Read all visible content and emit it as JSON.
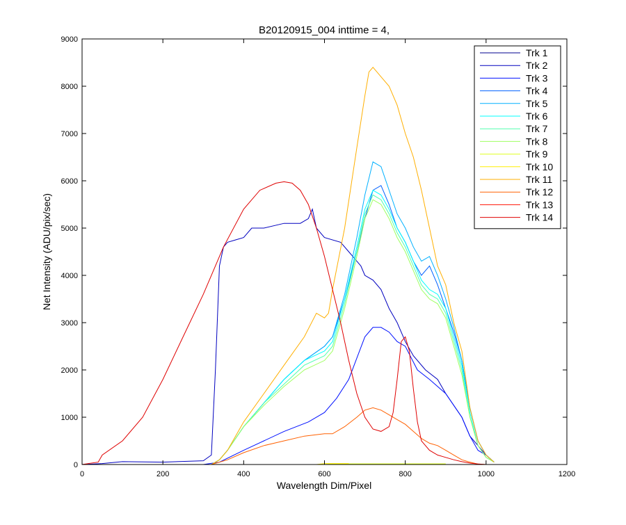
{
  "figure": {
    "background": "#ffffff"
  },
  "chart_data": {
    "type": "line",
    "title": "B20120915_004 inttime = 4,",
    "xlabel": "Wavelength Dim/Pixel",
    "ylabel": "Net Intensity (ADU/pix/sec)",
    "xlim": [
      0,
      1200
    ],
    "ylim": [
      0,
      9000
    ],
    "xticks": [
      0,
      200,
      400,
      600,
      800,
      1000,
      1200
    ],
    "yticks": [
      0,
      1000,
      2000,
      3000,
      4000,
      5000,
      6000,
      7000,
      8000,
      9000
    ],
    "grid": false,
    "legend_position": "top-right",
    "series": [
      {
        "name": "Trk 1",
        "color": "#00008f",
        "x": [
          0,
          660,
          680,
          850
        ],
        "y": [
          0,
          0,
          10,
          10
        ]
      },
      {
        "name": "Trk 2",
        "color": "#0000bf",
        "x": [
          0,
          50,
          100,
          200,
          300,
          320,
          330,
          340,
          350,
          360,
          380,
          400,
          420,
          450,
          500,
          540,
          560,
          570,
          580,
          600,
          640,
          660,
          690,
          700,
          720,
          740,
          760,
          780,
          800,
          820,
          850,
          880,
          900,
          940,
          960,
          980,
          1000,
          1020
        ],
        "y": [
          0,
          20,
          60,
          50,
          80,
          200,
          2000,
          4200,
          4600,
          4700,
          4750,
          4800,
          5000,
          5000,
          5100,
          5100,
          5200,
          5400,
          5000,
          4800,
          4700,
          4500,
          4200,
          4000,
          3900,
          3700,
          3300,
          3000,
          2600,
          2300,
          2000,
          1800,
          1500,
          1000,
          600,
          400,
          200,
          50
        ]
      },
      {
        "name": "Trk 3",
        "color": "#0010ff",
        "x": [
          0,
          300,
          340,
          400,
          450,
          500,
          560,
          600,
          630,
          660,
          700,
          720,
          740,
          760,
          780,
          800,
          830,
          860,
          900,
          940,
          960,
          980,
          1000,
          1020
        ],
        "y": [
          0,
          0,
          50,
          300,
          500,
          700,
          900,
          1100,
          1400,
          1800,
          2700,
          2900,
          2900,
          2800,
          2600,
          2500,
          2000,
          1800,
          1500,
          1000,
          600,
          300,
          200,
          50
        ]
      },
      {
        "name": "Trk 4",
        "color": "#0060ff",
        "x": [
          0,
          320,
          340,
          360,
          400,
          450,
          500,
          550,
          600,
          620,
          650,
          680,
          700,
          720,
          740,
          760,
          780,
          800,
          820,
          840,
          860,
          880,
          900,
          920,
          940,
          960,
          980,
          1000,
          1020
        ],
        "y": [
          0,
          0,
          100,
          300,
          800,
          1300,
          1800,
          2200,
          2500,
          2700,
          3500,
          4500,
          5200,
          5800,
          5900,
          5500,
          5000,
          4700,
          4300,
          4000,
          4200,
          3800,
          3300,
          2800,
          2200,
          1200,
          500,
          200,
          50
        ]
      },
      {
        "name": "Trk 5",
        "color": "#00b0ff",
        "x": [
          0,
          320,
          340,
          360,
          400,
          450,
          500,
          550,
          600,
          620,
          650,
          680,
          700,
          720,
          740,
          760,
          780,
          800,
          820,
          840,
          860,
          880,
          900,
          920,
          940,
          960,
          980,
          1000,
          1020
        ],
        "y": [
          0,
          0,
          100,
          300,
          800,
          1300,
          1800,
          2200,
          2500,
          2700,
          3600,
          4800,
          5700,
          6400,
          6300,
          5800,
          5300,
          5000,
          4600,
          4300,
          4400,
          4000,
          3500,
          2900,
          2200,
          1200,
          500,
          200,
          50
        ]
      },
      {
        "name": "Trk 6",
        "color": "#00ffff",
        "x": [
          0,
          320,
          340,
          360,
          400,
          450,
          500,
          550,
          600,
          620,
          650,
          680,
          700,
          720,
          740,
          760,
          780,
          800,
          820,
          840,
          860,
          880,
          900,
          920,
          940,
          960,
          980,
          1000,
          1020
        ],
        "y": [
          0,
          0,
          100,
          300,
          800,
          1300,
          1800,
          2200,
          2400,
          2600,
          3500,
          4600,
          5400,
          5800,
          5700,
          5400,
          5000,
          4700,
          4300,
          3900,
          3700,
          3600,
          3300,
          2700,
          2100,
          1100,
          400,
          150,
          50
        ]
      },
      {
        "name": "Trk 7",
        "color": "#50ffaf",
        "x": [
          0,
          320,
          340,
          360,
          400,
          450,
          500,
          550,
          600,
          620,
          650,
          680,
          700,
          720,
          740,
          760,
          780,
          800,
          820,
          840,
          860,
          880,
          900,
          920,
          940,
          960,
          980,
          1000,
          1020
        ],
        "y": [
          0,
          0,
          100,
          300,
          800,
          1300,
          1700,
          2100,
          2300,
          2500,
          3400,
          4500,
          5300,
          5700,
          5600,
          5300,
          4900,
          4600,
          4200,
          3800,
          3600,
          3500,
          3200,
          2600,
          2000,
          1000,
          400,
          150,
          50
        ]
      },
      {
        "name": "Trk 8",
        "color": "#9fff60",
        "x": [
          0,
          320,
          340,
          360,
          400,
          450,
          500,
          550,
          600,
          620,
          650,
          680,
          700,
          720,
          740,
          760,
          780,
          800,
          820,
          840,
          860,
          880,
          900,
          920,
          940,
          960,
          980,
          1000,
          1020
        ],
        "y": [
          0,
          0,
          100,
          300,
          800,
          1250,
          1650,
          2000,
          2200,
          2400,
          3300,
          4400,
          5200,
          5600,
          5500,
          5200,
          4800,
          4500,
          4100,
          3700,
          3500,
          3400,
          3100,
          2500,
          1900,
          1000,
          400,
          150,
          50
        ]
      },
      {
        "name": "Trk 9",
        "color": "#dfff20",
        "x": [
          0,
          600,
          620,
          900
        ],
        "y": [
          0,
          0,
          15,
          15
        ]
      },
      {
        "name": "Trk 10",
        "color": "#ffef00",
        "x": [
          0,
          580,
          600,
          660
        ],
        "y": [
          0,
          0,
          20,
          20
        ]
      },
      {
        "name": "Trk 11",
        "color": "#ffaf00",
        "x": [
          0,
          320,
          340,
          360,
          400,
          450,
          500,
          550,
          580,
          600,
          610,
          620,
          650,
          680,
          700,
          710,
          720,
          730,
          740,
          760,
          780,
          800,
          820,
          840,
          860,
          880,
          900,
          920,
          940,
          960,
          980,
          1000,
          1020
        ],
        "y": [
          0,
          0,
          100,
          300,
          900,
          1500,
          2100,
          2700,
          3200,
          3100,
          3200,
          3700,
          5000,
          6700,
          7800,
          8300,
          8400,
          8300,
          8200,
          8000,
          7600,
          7000,
          6500,
          5800,
          5000,
          4200,
          3800,
          3000,
          2400,
          1200,
          500,
          200,
          50
        ]
      },
      {
        "name": "Trk 12",
        "color": "#ff6000",
        "x": [
          0,
          320,
          340,
          360,
          400,
          450,
          500,
          550,
          600,
          620,
          650,
          680,
          700,
          720,
          740,
          760,
          780,
          800,
          820,
          840,
          860,
          880,
          900,
          920,
          940,
          960,
          980,
          1000,
          1020
        ],
        "y": [
          0,
          0,
          50,
          100,
          250,
          400,
          500,
          600,
          650,
          650,
          800,
          1000,
          1150,
          1200,
          1150,
          1050,
          950,
          850,
          700,
          550,
          450,
          400,
          300,
          200,
          100,
          50,
          10,
          0,
          0
        ]
      },
      {
        "name": "Trk 13",
        "color": "#ff1000",
        "x": [
          0,
          800,
          850
        ],
        "y": [
          0,
          0,
          0
        ]
      },
      {
        "name": "Trk 14",
        "color": "#df0000",
        "x": [
          0,
          40,
          50,
          100,
          150,
          200,
          250,
          300,
          350,
          400,
          440,
          480,
          500,
          520,
          540,
          560,
          580,
          600,
          620,
          640,
          660,
          680,
          700,
          720,
          740,
          760,
          770,
          780,
          790,
          800,
          810,
          820,
          830,
          840,
          860,
          880,
          900,
          920,
          940,
          960,
          980,
          1000
        ],
        "y": [
          0,
          50,
          200,
          500,
          1000,
          1800,
          2700,
          3600,
          4600,
          5400,
          5800,
          5950,
          5980,
          5950,
          5800,
          5500,
          5000,
          4400,
          3700,
          3000,
          2200,
          1500,
          1000,
          750,
          700,
          800,
          1100,
          1800,
          2600,
          2700,
          2400,
          1600,
          900,
          500,
          300,
          200,
          150,
          100,
          60,
          30,
          10,
          0
        ]
      }
    ]
  }
}
